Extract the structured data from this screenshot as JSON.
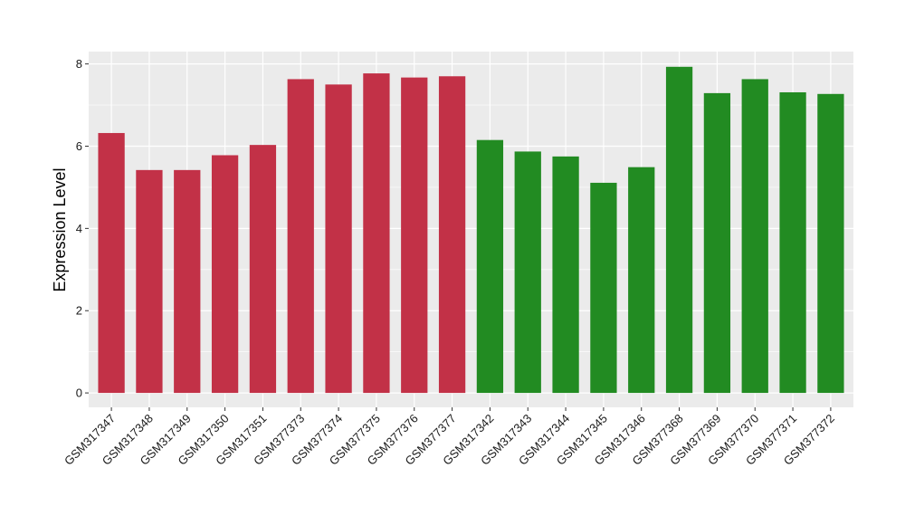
{
  "chart_data": {
    "type": "bar",
    "title": "",
    "xlabel": "",
    "ylabel": "Expression Level",
    "ylim": [
      -0.35,
      8.3
    ],
    "yticks": [
      0,
      2,
      4,
      6,
      8
    ],
    "grid": true,
    "categories": [
      "GSM317347",
      "GSM317348",
      "GSM317349",
      "GSM317350",
      "GSM317351",
      "GSM377373",
      "GSM377374",
      "GSM377375",
      "GSM377376",
      "GSM377377",
      "GSM317342",
      "GSM317343",
      "GSM317344",
      "GSM317345",
      "GSM317346",
      "GSM377368",
      "GSM377369",
      "GSM377370",
      "GSM377371",
      "GSM377372"
    ],
    "values": [
      6.32,
      5.42,
      5.42,
      5.78,
      6.03,
      7.63,
      7.5,
      7.77,
      7.67,
      7.7,
      6.15,
      5.87,
      5.75,
      5.11,
      5.49,
      7.93,
      7.29,
      7.63,
      7.31,
      7.27
    ],
    "groups": [
      0,
      0,
      0,
      0,
      0,
      0,
      0,
      0,
      0,
      0,
      1,
      1,
      1,
      1,
      1,
      1,
      1,
      1,
      1,
      1
    ],
    "colors": [
      "#c23147",
      "#228b22"
    ],
    "panel_background": "#ebebeb",
    "gridline_color": "#ffffff"
  }
}
